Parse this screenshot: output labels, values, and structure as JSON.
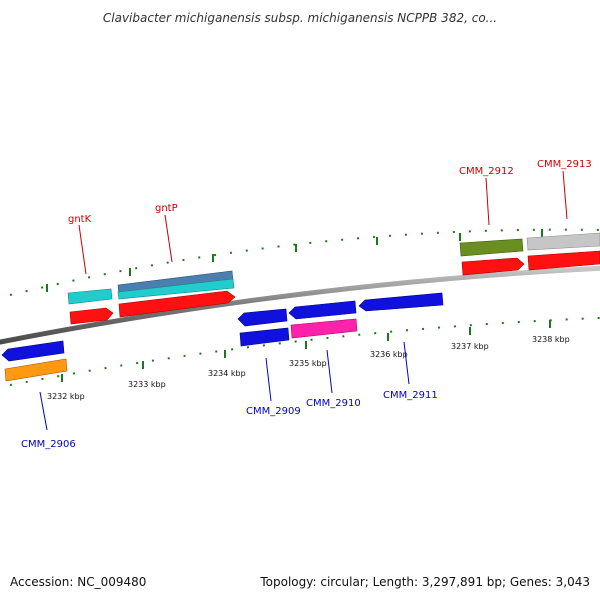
{
  "title": "Clavibacter michiganensis subsp. michiganensis NCPPB 382, co...",
  "footer": {
    "accession": "Accession: NC_009480",
    "summary": "Topology: circular; Length: 3,297,891 bp; Genes: 3,043"
  },
  "colors": {
    "top_labels": "#cc0000",
    "bottom_labels": "#0000cc",
    "ticks": "#1a7a1a",
    "backbone": "#888888"
  },
  "top_gene_labels": [
    "gntK",
    "gntP",
    "CMM_2912",
    "CMM_2913"
  ],
  "bottom_gene_labels": [
    "CMM_2906",
    "CMM_2909",
    "CMM_2910",
    "CMM_2911"
  ],
  "scale_labels": [
    "3232 kbp",
    "3233 kbp",
    "3234 kbp",
    "3235 kbp",
    "3236 kbp",
    "3237 kbp",
    "3238 kbp"
  ],
  "feature_colors": [
    "cyan",
    "steel-blue",
    "red",
    "olive-green",
    "light-gray",
    "blue",
    "orange",
    "magenta"
  ]
}
